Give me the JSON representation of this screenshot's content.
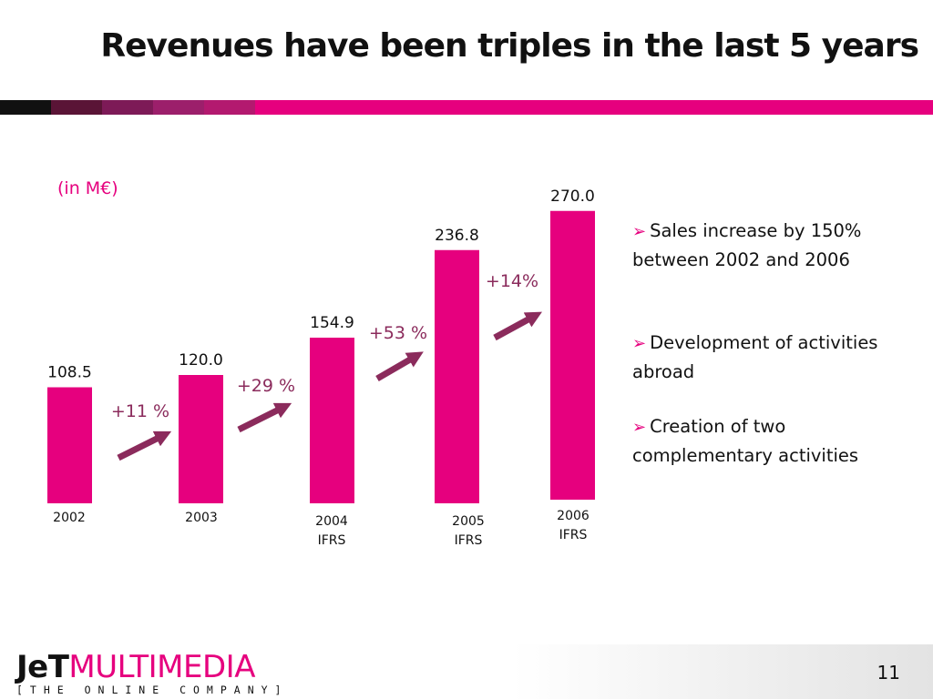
{
  "slide": {
    "title": "Revenues have been triples in the last 5 years",
    "unit_label": "(in M€)",
    "page_number": "11"
  },
  "stripe": {
    "colors": [
      "#111111",
      "#5a1436",
      "#7d1a57",
      "#9c1f6b",
      "#b3196f",
      "#e6007e"
    ]
  },
  "chart_data": {
    "type": "bar",
    "title": "",
    "xlabel": "",
    "ylabel": "",
    "ylim": [
      0,
      270
    ],
    "grid": false,
    "bar_color": "#e6007e",
    "growth_color": "#8b2b5c",
    "categories": [
      "2002",
      "2003",
      "2004\nIFRS",
      "2005\nIFRS",
      "2006\nIFRS"
    ],
    "values": [
      108.5,
      120.0,
      154.9,
      236.8,
      270.0
    ],
    "value_labels": [
      "108.5",
      "120.0",
      "154.9",
      "236.8",
      "270.0"
    ],
    "growth_labels": [
      "+11 %",
      "+29 %",
      "+53 %",
      "+14%"
    ]
  },
  "bullets": [
    "Sales increase by 150% between 2002 and 2006",
    "Development of activities abroad",
    "Creation of two complementary activities"
  ],
  "logo": {
    "part1": "JeT",
    "part2": "MULTIMEDIA",
    "tagline": "[THE ONLINE COMPANY]"
  }
}
